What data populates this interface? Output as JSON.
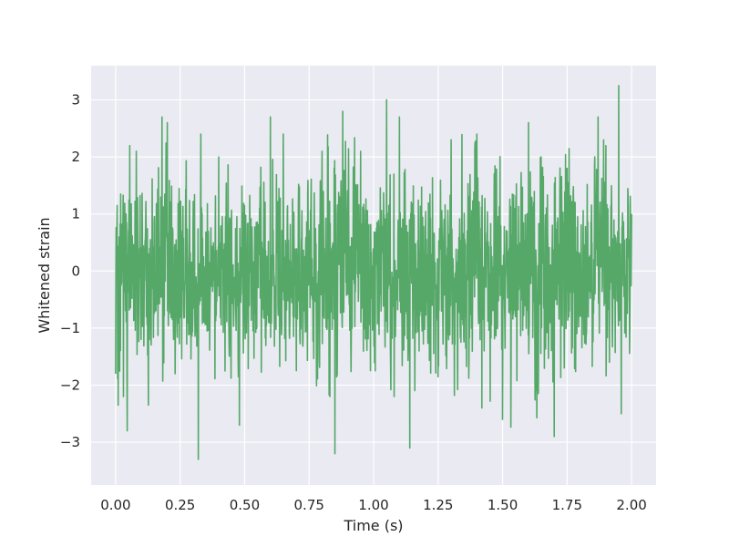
{
  "chart_data": {
    "type": "line",
    "title": "",
    "xlabel": "Time (s)",
    "ylabel": "Whitened strain",
    "xlim": [
      -0.095,
      2.095
    ],
    "ylim": [
      -3.75,
      3.6
    ],
    "xticks": [
      0.0,
      0.25,
      0.5,
      0.75,
      1.0,
      1.25,
      1.5,
      1.75,
      2.0
    ],
    "xtick_labels": [
      "0.00",
      "0.25",
      "0.50",
      "0.75",
      "1.00",
      "1.25",
      "1.50",
      "1.75",
      "2.00"
    ],
    "yticks": [
      -3,
      -2,
      -1,
      0,
      1,
      2,
      3
    ],
    "ytick_labels": [
      "−3",
      "−2",
      "−1",
      "0",
      "1",
      "2",
      "3"
    ],
    "grid": true,
    "background_color": "#eaeaf2",
    "grid_color": "#ffffff",
    "series": [
      {
        "color": "#55a868",
        "x_start": 0.0,
        "x_end": 2.0,
        "n_points": 2048,
        "y_std": 0.95,
        "values_sampled": [
          {
            "x": 0.0,
            "y": -1.8
          },
          {
            "x": 0.005,
            "y": 0.8
          },
          {
            "x": 0.01,
            "y": -2.35
          },
          {
            "x": 0.02,
            "y": 1.35
          },
          {
            "x": 0.03,
            "y": -2.2
          },
          {
            "x": 0.04,
            "y": 1.0
          },
          {
            "x": 0.045,
            "y": -2.8
          },
          {
            "x": 0.055,
            "y": 2.2
          },
          {
            "x": 0.08,
            "y": 2.1
          },
          {
            "x": 0.18,
            "y": 2.7
          },
          {
            "x": 0.2,
            "y": 2.6
          },
          {
            "x": 0.32,
            "y": -3.3
          },
          {
            "x": 0.33,
            "y": 2.4
          },
          {
            "x": 0.4,
            "y": 2.0
          },
          {
            "x": 0.48,
            "y": -2.7
          },
          {
            "x": 0.6,
            "y": 2.7
          },
          {
            "x": 0.65,
            "y": 2.4
          },
          {
            "x": 0.8,
            "y": 2.1
          },
          {
            "x": 0.83,
            "y": -2.2
          },
          {
            "x": 0.85,
            "y": -3.2
          },
          {
            "x": 0.88,
            "y": 2.8
          },
          {
            "x": 0.95,
            "y": 2.1
          },
          {
            "x": 1.05,
            "y": 3.0
          },
          {
            "x": 1.08,
            "y": -2.2
          },
          {
            "x": 1.1,
            "y": 2.7
          },
          {
            "x": 1.14,
            "y": -3.1
          },
          {
            "x": 1.3,
            "y": 2.3
          },
          {
            "x": 1.4,
            "y": 2.4
          },
          {
            "x": 1.42,
            "y": -2.4
          },
          {
            "x": 1.5,
            "y": -2.6
          },
          {
            "x": 1.6,
            "y": 2.6
          },
          {
            "x": 1.7,
            "y": -2.9
          },
          {
            "x": 1.75,
            "y": 1.8
          },
          {
            "x": 1.87,
            "y": 2.7
          },
          {
            "x": 1.9,
            "y": 2.2
          },
          {
            "x": 1.95,
            "y": 3.25
          },
          {
            "x": 1.96,
            "y": -2.5
          },
          {
            "x": 2.0,
            "y": 1.0
          }
        ]
      }
    ]
  }
}
